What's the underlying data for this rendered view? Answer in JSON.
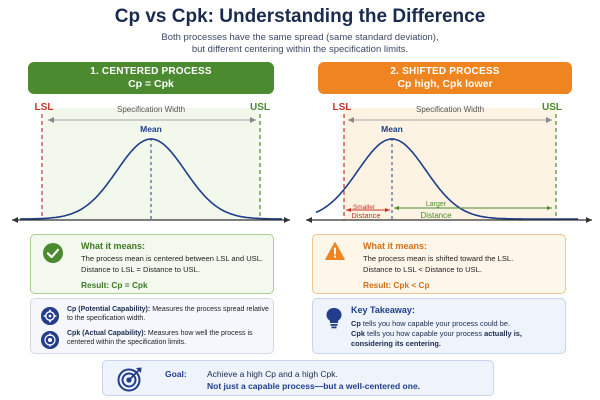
{
  "title": "Cp vs Cpk: Understanding the Difference",
  "subtitle_line1": "Both processes have the same spread (same standard deviation),",
  "subtitle_line2": "but different centering within the specification limits.",
  "colors": {
    "green": "#4b8a2f",
    "orange": "#ee8521",
    "navy": "#1f3e8c",
    "lsl": "#c8332b",
    "usl": "#4b8a2f"
  },
  "left_panel": {
    "header_line1": "1. CENTERED PROCESS",
    "header_line2": "Cp = Cpk",
    "lsl": "LSL",
    "usl": "USL",
    "spec_width": "Specification Width",
    "mean": "Mean",
    "info_heading": "What it means:",
    "info_line1": "The process mean is centered between LSL and USL.",
    "info_line2": "Distance to LSL = Distance to USL.",
    "result": "Result: Cp = Cpk",
    "icon": "check-icon"
  },
  "right_panel": {
    "header_line1": "2. SHIFTED PROCESS",
    "header_line2": "Cp high, Cpk lower",
    "lsl": "LSL",
    "usl": "USL",
    "spec_width": "Specification Width",
    "mean": "Mean",
    "smaller_label1": "Smaller",
    "smaller_label2": "Distance",
    "larger_label1": "Larger",
    "larger_label2": "Distance",
    "info_heading": "What it means:",
    "info_line1": "The process mean is shifted toward the LSL.",
    "info_line2": "Distance to LSL < Distance to USL.",
    "result": "Result: Cpk < Cp",
    "icon": "warning-icon"
  },
  "capability": {
    "cp_label": "Cp (Potential Capability):",
    "cp_text": "Measures the process spread relative to the specification width.",
    "cpk_label": "Cpk (Actual Capability):",
    "cpk_text": "Measures how well the process is centered within the specification limits."
  },
  "takeaway": {
    "heading": "Key Takeaway:",
    "line1_bold": "Cp",
    "line1_rest": "tells you how capable your process could be.",
    "line2_bold": "Cpk",
    "line2_rest": "tells you how capable your process",
    "line2_bold2": "actually is,",
    "line3": "considering its centering.",
    "icon": "lightbulb-icon"
  },
  "goal": {
    "label": "Goal:",
    "line1": "Achieve a high Cp and a high Cpk.",
    "line2": "Not just a capable process—but a well-centered one.",
    "icon": "target-icon"
  }
}
